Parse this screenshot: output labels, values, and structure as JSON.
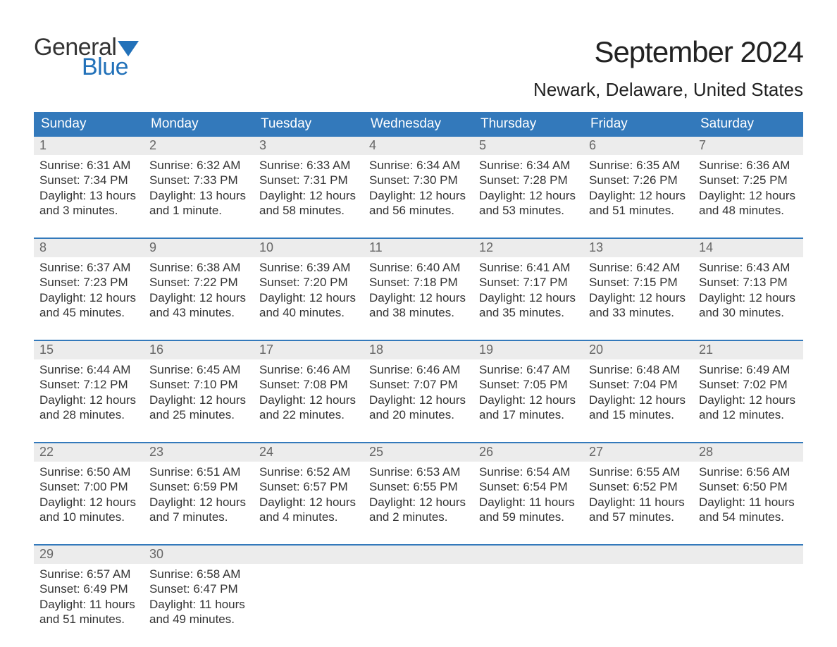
{
  "logo": {
    "general": "General",
    "blue": "Blue",
    "flag_color": "#2271b9"
  },
  "title": "September 2024",
  "location": "Newark, Delaware, United States",
  "colors": {
    "header_bg": "#3379bb",
    "header_text": "#ffffff",
    "daynum_bg": "#ececec",
    "daynum_text": "#666666",
    "body_text": "#333333",
    "border": "#3379bb",
    "logo_blue": "#2271b9",
    "background": "#ffffff"
  },
  "weekdays": [
    "Sunday",
    "Monday",
    "Tuesday",
    "Wednesday",
    "Thursday",
    "Friday",
    "Saturday"
  ],
  "weeks": [
    [
      {
        "day": "1",
        "sunrise": "Sunrise: 6:31 AM",
        "sunset": "Sunset: 7:34 PM",
        "dl1": "Daylight: 13 hours",
        "dl2": "and 3 minutes."
      },
      {
        "day": "2",
        "sunrise": "Sunrise: 6:32 AM",
        "sunset": "Sunset: 7:33 PM",
        "dl1": "Daylight: 13 hours",
        "dl2": "and 1 minute."
      },
      {
        "day": "3",
        "sunrise": "Sunrise: 6:33 AM",
        "sunset": "Sunset: 7:31 PM",
        "dl1": "Daylight: 12 hours",
        "dl2": "and 58 minutes."
      },
      {
        "day": "4",
        "sunrise": "Sunrise: 6:34 AM",
        "sunset": "Sunset: 7:30 PM",
        "dl1": "Daylight: 12 hours",
        "dl2": "and 56 minutes."
      },
      {
        "day": "5",
        "sunrise": "Sunrise: 6:34 AM",
        "sunset": "Sunset: 7:28 PM",
        "dl1": "Daylight: 12 hours",
        "dl2": "and 53 minutes."
      },
      {
        "day": "6",
        "sunrise": "Sunrise: 6:35 AM",
        "sunset": "Sunset: 7:26 PM",
        "dl1": "Daylight: 12 hours",
        "dl2": "and 51 minutes."
      },
      {
        "day": "7",
        "sunrise": "Sunrise: 6:36 AM",
        "sunset": "Sunset: 7:25 PM",
        "dl1": "Daylight: 12 hours",
        "dl2": "and 48 minutes."
      }
    ],
    [
      {
        "day": "8",
        "sunrise": "Sunrise: 6:37 AM",
        "sunset": "Sunset: 7:23 PM",
        "dl1": "Daylight: 12 hours",
        "dl2": "and 45 minutes."
      },
      {
        "day": "9",
        "sunrise": "Sunrise: 6:38 AM",
        "sunset": "Sunset: 7:22 PM",
        "dl1": "Daylight: 12 hours",
        "dl2": "and 43 minutes."
      },
      {
        "day": "10",
        "sunrise": "Sunrise: 6:39 AM",
        "sunset": "Sunset: 7:20 PM",
        "dl1": "Daylight: 12 hours",
        "dl2": "and 40 minutes."
      },
      {
        "day": "11",
        "sunrise": "Sunrise: 6:40 AM",
        "sunset": "Sunset: 7:18 PM",
        "dl1": "Daylight: 12 hours",
        "dl2": "and 38 minutes."
      },
      {
        "day": "12",
        "sunrise": "Sunrise: 6:41 AM",
        "sunset": "Sunset: 7:17 PM",
        "dl1": "Daylight: 12 hours",
        "dl2": "and 35 minutes."
      },
      {
        "day": "13",
        "sunrise": "Sunrise: 6:42 AM",
        "sunset": "Sunset: 7:15 PM",
        "dl1": "Daylight: 12 hours",
        "dl2": "and 33 minutes."
      },
      {
        "day": "14",
        "sunrise": "Sunrise: 6:43 AM",
        "sunset": "Sunset: 7:13 PM",
        "dl1": "Daylight: 12 hours",
        "dl2": "and 30 minutes."
      }
    ],
    [
      {
        "day": "15",
        "sunrise": "Sunrise: 6:44 AM",
        "sunset": "Sunset: 7:12 PM",
        "dl1": "Daylight: 12 hours",
        "dl2": "and 28 minutes."
      },
      {
        "day": "16",
        "sunrise": "Sunrise: 6:45 AM",
        "sunset": "Sunset: 7:10 PM",
        "dl1": "Daylight: 12 hours",
        "dl2": "and 25 minutes."
      },
      {
        "day": "17",
        "sunrise": "Sunrise: 6:46 AM",
        "sunset": "Sunset: 7:08 PM",
        "dl1": "Daylight: 12 hours",
        "dl2": "and 22 minutes."
      },
      {
        "day": "18",
        "sunrise": "Sunrise: 6:46 AM",
        "sunset": "Sunset: 7:07 PM",
        "dl1": "Daylight: 12 hours",
        "dl2": "and 20 minutes."
      },
      {
        "day": "19",
        "sunrise": "Sunrise: 6:47 AM",
        "sunset": "Sunset: 7:05 PM",
        "dl1": "Daylight: 12 hours",
        "dl2": "and 17 minutes."
      },
      {
        "day": "20",
        "sunrise": "Sunrise: 6:48 AM",
        "sunset": "Sunset: 7:04 PM",
        "dl1": "Daylight: 12 hours",
        "dl2": "and 15 minutes."
      },
      {
        "day": "21",
        "sunrise": "Sunrise: 6:49 AM",
        "sunset": "Sunset: 7:02 PM",
        "dl1": "Daylight: 12 hours",
        "dl2": "and 12 minutes."
      }
    ],
    [
      {
        "day": "22",
        "sunrise": "Sunrise: 6:50 AM",
        "sunset": "Sunset: 7:00 PM",
        "dl1": "Daylight: 12 hours",
        "dl2": "and 10 minutes."
      },
      {
        "day": "23",
        "sunrise": "Sunrise: 6:51 AM",
        "sunset": "Sunset: 6:59 PM",
        "dl1": "Daylight: 12 hours",
        "dl2": "and 7 minutes."
      },
      {
        "day": "24",
        "sunrise": "Sunrise: 6:52 AM",
        "sunset": "Sunset: 6:57 PM",
        "dl1": "Daylight: 12 hours",
        "dl2": "and 4 minutes."
      },
      {
        "day": "25",
        "sunrise": "Sunrise: 6:53 AM",
        "sunset": "Sunset: 6:55 PM",
        "dl1": "Daylight: 12 hours",
        "dl2": "and 2 minutes."
      },
      {
        "day": "26",
        "sunrise": "Sunrise: 6:54 AM",
        "sunset": "Sunset: 6:54 PM",
        "dl1": "Daylight: 11 hours",
        "dl2": "and 59 minutes."
      },
      {
        "day": "27",
        "sunrise": "Sunrise: 6:55 AM",
        "sunset": "Sunset: 6:52 PM",
        "dl1": "Daylight: 11 hours",
        "dl2": "and 57 minutes."
      },
      {
        "day": "28",
        "sunrise": "Sunrise: 6:56 AM",
        "sunset": "Sunset: 6:50 PM",
        "dl1": "Daylight: 11 hours",
        "dl2": "and 54 minutes."
      }
    ],
    [
      {
        "day": "29",
        "sunrise": "Sunrise: 6:57 AM",
        "sunset": "Sunset: 6:49 PM",
        "dl1": "Daylight: 11 hours",
        "dl2": "and 51 minutes."
      },
      {
        "day": "30",
        "sunrise": "Sunrise: 6:58 AM",
        "sunset": "Sunset: 6:47 PM",
        "dl1": "Daylight: 11 hours",
        "dl2": "and 49 minutes."
      },
      null,
      null,
      null,
      null,
      null
    ]
  ]
}
